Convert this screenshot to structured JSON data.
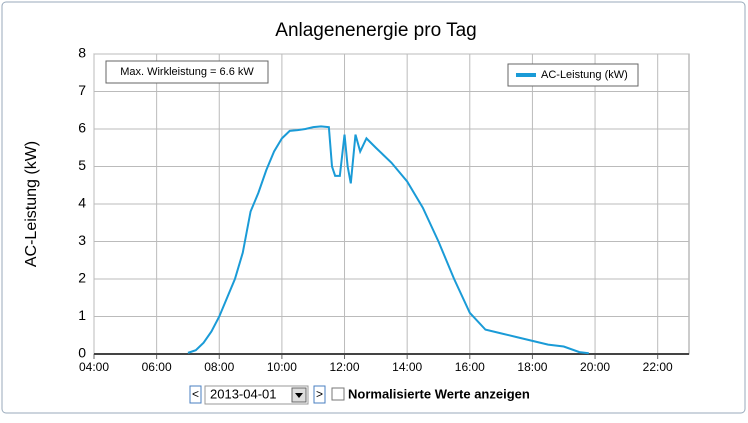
{
  "chart_data": {
    "type": "line",
    "title": "Anlagenenergie pro Tag",
    "ylabel": "AC-Leistung (kW)",
    "annotation": "Max. Wirkleistung = 6.6 kW",
    "x": [
      7.0,
      7.25,
      7.5,
      7.75,
      8.0,
      8.25,
      8.5,
      8.75,
      9.0,
      9.25,
      9.5,
      9.75,
      10.0,
      10.25,
      10.5,
      10.75,
      11.0,
      11.25,
      11.5,
      11.6,
      11.7,
      11.85,
      12.0,
      12.1,
      12.2,
      12.35,
      12.5,
      12.7,
      13.0,
      13.5,
      14.0,
      14.5,
      15.0,
      15.5,
      16.0,
      16.5,
      17.0,
      17.5,
      18.0,
      18.5,
      19.0,
      19.5,
      19.8
    ],
    "series": [
      {
        "name": "AC-Leistung (kW)",
        "color": "#1a9bd7",
        "values": [
          0.03,
          0.1,
          0.3,
          0.6,
          1.0,
          1.5,
          2.0,
          2.7,
          3.8,
          4.3,
          4.9,
          5.4,
          5.75,
          5.95,
          5.97,
          6.0,
          6.05,
          6.07,
          6.05,
          5.0,
          4.75,
          4.75,
          5.85,
          5.0,
          4.55,
          5.85,
          5.4,
          5.75,
          5.5,
          5.1,
          4.6,
          3.9,
          3.0,
          2.0,
          1.1,
          0.65,
          0.55,
          0.45,
          0.35,
          0.25,
          0.2,
          0.05,
          0.02
        ]
      }
    ],
    "xlim": [
      4,
      23
    ],
    "xticks": [
      {
        "value": 4,
        "label": "04:00"
      },
      {
        "value": 6,
        "label": "06:00"
      },
      {
        "value": 8,
        "label": "08:00"
      },
      {
        "value": 10,
        "label": "10:00"
      },
      {
        "value": 12,
        "label": "12:00"
      },
      {
        "value": 14,
        "label": "14:00"
      },
      {
        "value": 16,
        "label": "16:00"
      },
      {
        "value": 18,
        "label": "18:00"
      },
      {
        "value": 20,
        "label": "20:00"
      },
      {
        "value": 22,
        "label": "22:00"
      }
    ],
    "ylim": [
      0,
      8
    ],
    "yticks": [
      0,
      1,
      2,
      3,
      4,
      5,
      6,
      7,
      8
    ],
    "grid": true,
    "controls": {
      "prev": "<",
      "date": "2013-04-01",
      "next": ">",
      "checkbox": "Normalisierte Werte anzeigen"
    }
  }
}
